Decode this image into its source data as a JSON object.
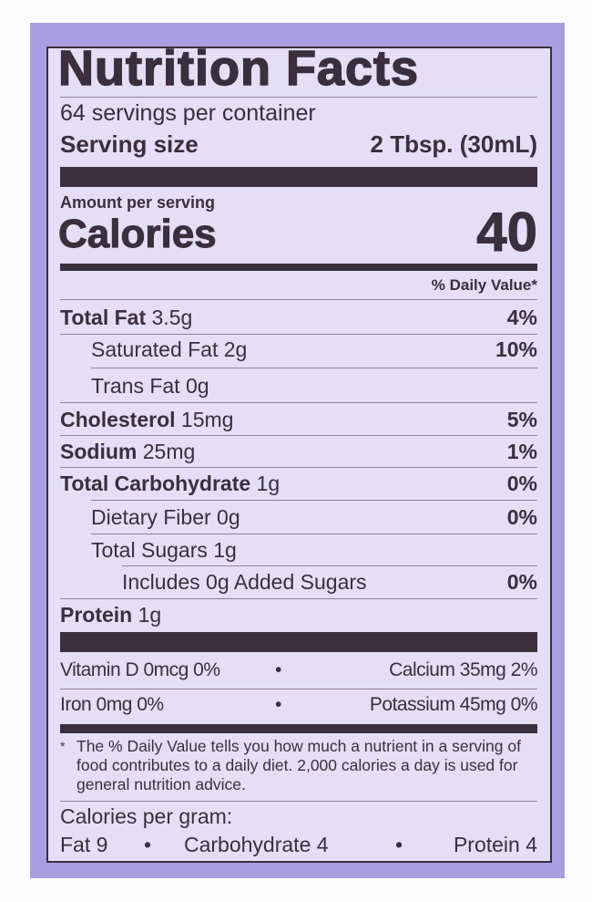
{
  "title": "Nutrition Facts",
  "servings": "64 servings per container",
  "serving_size_label": "Serving size",
  "serving_size_value": "2 Tbsp. (30mL)",
  "amount_per_serving": "Amount per serving",
  "calories_label": "Calories",
  "calories_value": "40",
  "dv_header": "% Daily Value*",
  "nutrients": [
    {
      "name": "Total Fat",
      "amount": "3.5g",
      "dv": "4%"
    },
    {
      "name": "Saturated Fat",
      "amount": "2g",
      "dv": "10%"
    },
    {
      "name": "Trans Fat",
      "amount": "0g",
      "dv": ""
    },
    {
      "name": "Cholesterol",
      "amount": "15mg",
      "dv": "5%"
    },
    {
      "name": "Sodium",
      "amount": "25mg",
      "dv": "1%"
    },
    {
      "name": "Total Carbohydrate",
      "amount": "1g",
      "dv": "0%"
    },
    {
      "name": "Dietary Fiber",
      "amount": "0g",
      "dv": "0%"
    },
    {
      "name": "Total Sugars",
      "amount": "1g",
      "dv": ""
    },
    {
      "name": "Includes 0g Added Sugars",
      "amount": "",
      "dv": "0%"
    },
    {
      "name": "Protein",
      "amount": "1g",
      "dv": ""
    }
  ],
  "vitamins": [
    {
      "left": "Vitamin D 0mcg 0%",
      "right": "Calcium 35mg 2%"
    },
    {
      "left": "Iron 0mg 0%",
      "right": "Potassium 45mg 0%"
    }
  ],
  "bullet": "•",
  "footnote_star": "*",
  "footnote": "The % Daily Value tells you how much a nutrient in a serving of food contributes to a daily diet. 2,000 calories a day is used for general nutrition advice.",
  "cal_per_gram": "Calories per gram:",
  "cal_fat": "Fat 9",
  "cal_carb": "Carbohydrate 4",
  "cal_protein": "Protein 4",
  "colors": {
    "background": "#aa9ee3",
    "panel": "#e4def7",
    "ink": "#3b2f3d"
  }
}
